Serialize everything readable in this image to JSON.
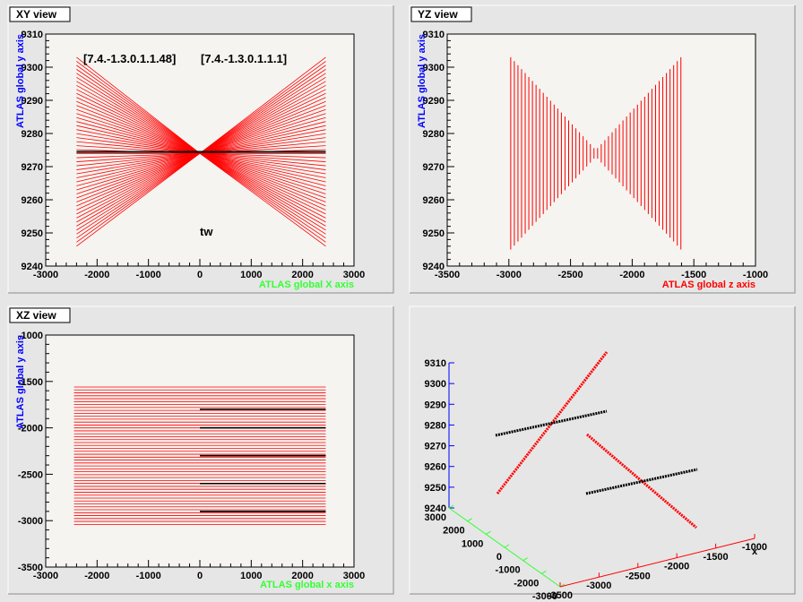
{
  "colors": {
    "frame_bg": "#e6e6e6",
    "plot_bg": "#f5f4f0",
    "track": "#ff0000",
    "wire": "#000000",
    "green_title": "#33ff33",
    "red_title": "#ff0000",
    "blue_title": "#0000ff"
  },
  "chart_data": [
    {
      "type": "line",
      "pad_title": "XY view",
      "xlabel": "ATLAS global X axis",
      "ylabel": "ATLAS global y axis",
      "xlim": [
        -3000,
        3000
      ],
      "ylim": [
        9240,
        9310
      ],
      "x_ticks": [
        "-3000",
        "-2000",
        "-1000",
        "0",
        "1000",
        "2000",
        "3000"
      ],
      "y_ticks": [
        "9240",
        "9250",
        "9260",
        "9270",
        "9280",
        "9290",
        "9300",
        "9310"
      ],
      "annotations": [
        "[7.4.-1.3.0.1.1.48]",
        "[7.4.-1.3.0.1.1.1]",
        "tw"
      ],
      "fan_center": [
        0,
        9274
      ],
      "fan_left_x": -2400,
      "fan_right_x": 2450,
      "fan_y_range": [
        9246,
        9303
      ],
      "fan_count": 48,
      "black_wire_y": [
        9274.3,
        9274.6
      ]
    },
    {
      "type": "line",
      "pad_title": "YZ view",
      "xlabel": "ATLAS global z axis",
      "ylabel": "ATLAS global y axis",
      "xlim": [
        -3500,
        -1000
      ],
      "ylim": [
        9240,
        9310
      ],
      "x_ticks": [
        "-3500",
        "-3000",
        "-2500",
        "-2000",
        "-1500",
        "-1000"
      ],
      "y_ticks": [
        "9240",
        "9250",
        "9260",
        "9270",
        "9280",
        "9290",
        "9300",
        "9310"
      ],
      "z_range": [
        -2985,
        -1605
      ],
      "bar_count": 48,
      "center_y": 9274,
      "half_height_max": 29,
      "half_height_min": 1
    },
    {
      "type": "line",
      "pad_title": "XZ view",
      "xlabel": "ATLAS global x axis",
      "ylabel": "ATLAS global y axis",
      "xlim": [
        -3000,
        3000
      ],
      "ylim": [
        -3500,
        -1000
      ],
      "x_ticks": [
        "-3000",
        "-2000",
        "-1000",
        "0",
        "1000",
        "2000",
        "3000"
      ],
      "y_ticks": [
        "-3500",
        "-3000",
        "-2500",
        "-2000",
        "-1500",
        "-1000"
      ],
      "line_x_range": [
        -2450,
        2450
      ],
      "line_y_range": [
        -3040,
        -1560
      ],
      "line_count": 48,
      "black_line_x_range": [
        0,
        2450
      ],
      "black_line_y": [
        -1800,
        -2000,
        -2300,
        -2600,
        -2900
      ]
    },
    {
      "type": "scatter",
      "y_ticks": [
        "9240",
        "9250",
        "9260",
        "9270",
        "9280",
        "9290",
        "9300",
        "9310"
      ],
      "x_ticks": [
        "3000",
        "2000",
        "1000",
        "0",
        "-1000",
        "-2000",
        "-3000"
      ],
      "z_ticks": [
        "-3500",
        "-3000",
        "-2500",
        "-2000",
        "-1500",
        "-1000"
      ]
    }
  ]
}
